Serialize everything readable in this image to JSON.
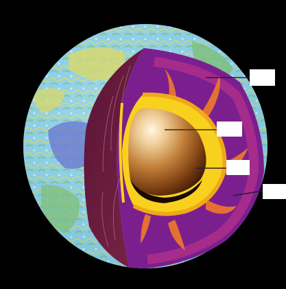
{
  "diagram": {
    "labels": [
      {
        "id": "crust",
        "text": ""
      },
      {
        "id": "inner-core",
        "text": ""
      },
      {
        "id": "outer-core",
        "text": ""
      },
      {
        "id": "mantle",
        "text": ""
      }
    ]
  },
  "colors": {
    "background": "#000000",
    "ocean": "#7fc8e0",
    "land_green": "#7fbf7f",
    "land_yellow": "#d8d86a",
    "land_blue": "#6f7fd0",
    "mantle_purple": "#7b1f8f",
    "mantle_magenta": "#b0308a",
    "plume_orange": "#f07a2a",
    "outer_core_yellow": "#f7d11e",
    "inner_core_brown": "#9a5a1e",
    "cut_face_maroon": "#6a1a3a"
  }
}
